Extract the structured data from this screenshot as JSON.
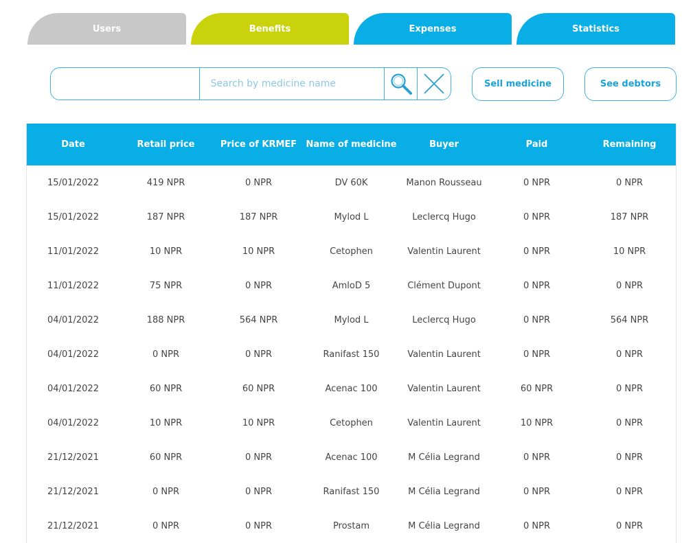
{
  "tabs": [
    {
      "label": "Users",
      "color": "#c8c8c8"
    },
    {
      "label": "Benefits",
      "color": "#c9d20a"
    },
    {
      "label": "Expenses",
      "color": "#0aaee6"
    },
    {
      "label": "Statistics",
      "color": "#0aaee6"
    }
  ],
  "search": {
    "placeholder": "Search by medicine name",
    "value": "",
    "search_icon": "magnifier-icon",
    "clear_icon": "close-icon"
  },
  "actions": {
    "sell_label": "Sell medicine",
    "debtors_label": "See debtors"
  },
  "table": {
    "headers": [
      "Date",
      "Retail price",
      "Price of KRMEF",
      "Name of medicine",
      "Buyer",
      "Paid",
      "Remaining"
    ],
    "rows": [
      [
        "15/01/2022",
        "419 NPR",
        "0 NPR",
        "DV 60K",
        "Manon Rousseau",
        "0 NPR",
        "0 NPR"
      ],
      [
        "15/01/2022",
        "187 NPR",
        "187 NPR",
        "Mylod L",
        "Leclercq Hugo",
        "0 NPR",
        "187 NPR"
      ],
      [
        "11/01/2022",
        "10 NPR",
        "10 NPR",
        "Cetophen",
        "Valentin Laurent",
        "0 NPR",
        "10 NPR"
      ],
      [
        "11/01/2022",
        "75 NPR",
        "0 NPR",
        "AmloD 5",
        "Clément Dupont",
        "0 NPR",
        "0 NPR"
      ],
      [
        "04/01/2022",
        "188 NPR",
        "564 NPR",
        "Mylod L",
        "Leclercq Hugo",
        "0 NPR",
        "564 NPR"
      ],
      [
        "04/01/2022",
        "0 NPR",
        "0 NPR",
        "Ranifast 150",
        "Valentin Laurent",
        "0 NPR",
        "0 NPR"
      ],
      [
        "04/01/2022",
        "60 NPR",
        "60 NPR",
        "Acenac 100",
        "Valentin Laurent",
        "60 NPR",
        "0 NPR"
      ],
      [
        "04/01/2022",
        "10 NPR",
        "10 NPR",
        "Cetophen",
        "Valentin Laurent",
        "10 NPR",
        "0 NPR"
      ],
      [
        "21/12/2021",
        "60 NPR",
        "0 NPR",
        "Acenac 100",
        "M Célia Legrand",
        "0 NPR",
        "0 NPR"
      ],
      [
        "21/12/2021",
        "0 NPR",
        "0 NPR",
        "Ranifast 150",
        "M Célia Legrand",
        "0 NPR",
        "0 NPR"
      ],
      [
        "21/12/2021",
        "0 NPR",
        "0 NPR",
        "Prostam",
        "M Célia Legrand",
        "0 NPR",
        "0 NPR"
      ]
    ]
  },
  "colors": {
    "accent": "#0aaee6",
    "active_tab": "#c9d20a",
    "inactive_tab": "#c8c8c8",
    "border": "#3fb3e0"
  }
}
